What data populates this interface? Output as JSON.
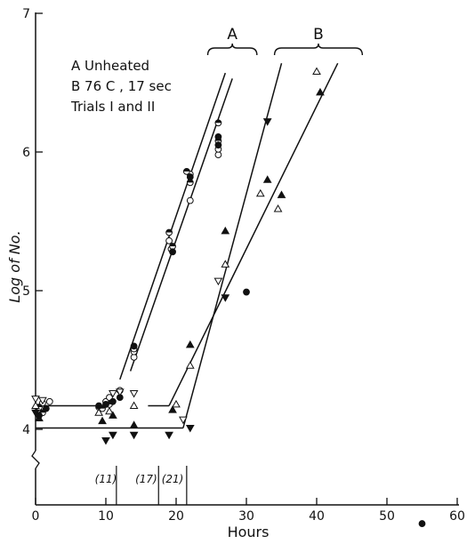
{
  "chart_data": {
    "type": "scatter",
    "xlabel": "Hours",
    "ylabel": "Log of No.",
    "xlim": [
      0,
      60
    ],
    "ylim": [
      3.75,
      7.0
    ],
    "y_axis_break": true,
    "x_ticks": [
      0,
      10,
      20,
      30,
      40,
      50,
      60
    ],
    "y_ticks": [
      4,
      5,
      6,
      7
    ],
    "grid": false,
    "legend": {
      "position": "top-left",
      "lines": [
        "A  Unheated",
        "B  76 C , 17 sec",
        "Trials I and II"
      ]
    },
    "brackets": [
      {
        "label": "A",
        "x_range": [
          24.5,
          31.5
        ]
      },
      {
        "label": "B",
        "x_range": [
          34,
          46.5
        ]
      }
    ],
    "interval_labels": [
      {
        "text": "(11)",
        "x_range": [
          8.5,
          11.5
        ]
      },
      {
        "text": "(17)",
        "x_range": [
          14,
          17.5
        ]
      },
      {
        "text": "(21)",
        "x_range": [
          17.5,
          21.5
        ]
      }
    ],
    "series": [
      {
        "marker": "open-circle",
        "points": [
          [
            0.5,
            4.13
          ],
          [
            1,
            4.19
          ],
          [
            2,
            4.2
          ],
          [
            9,
            4.16
          ],
          [
            10,
            4.2
          ],
          [
            10.5,
            4.23
          ],
          [
            12,
            4.28
          ],
          [
            14,
            4.52
          ],
          [
            14,
            4.56
          ],
          [
            19,
            5.36
          ],
          [
            19.3,
            5.3
          ],
          [
            22,
            5.65
          ],
          [
            22,
            5.84
          ],
          [
            26,
            5.98
          ],
          [
            26,
            6.02
          ]
        ]
      },
      {
        "marker": "half-filled-circle",
        "points": [
          [
            0.5,
            4.16
          ],
          [
            1,
            4.12
          ],
          [
            9.5,
            4.15
          ],
          [
            10.5,
            4.18
          ],
          [
            14,
            4.58
          ],
          [
            19,
            5.42
          ],
          [
            19.5,
            5.32
          ],
          [
            21.5,
            5.86
          ],
          [
            22,
            5.78
          ],
          [
            26,
            6.08
          ],
          [
            26,
            6.21
          ]
        ]
      },
      {
        "marker": "filled-circle",
        "points": [
          [
            0.5,
            4.1
          ],
          [
            1.5,
            4.15
          ],
          [
            9,
            4.17
          ],
          [
            10,
            4.18
          ],
          [
            11,
            4.2
          ],
          [
            12,
            4.23
          ],
          [
            14,
            4.6
          ],
          [
            19.5,
            5.28
          ],
          [
            22,
            5.82
          ],
          [
            26,
            6.05
          ],
          [
            26,
            6.11
          ],
          [
            30,
            4.99
          ],
          [
            55,
            3.32
          ]
        ]
      },
      {
        "marker": "open-triangle",
        "points": [
          [
            0,
            4.17
          ],
          [
            9,
            4.12
          ],
          [
            10.5,
            4.13
          ],
          [
            14,
            4.17
          ],
          [
            20,
            4.18
          ],
          [
            22,
            4.46
          ],
          [
            27,
            5.19
          ],
          [
            32,
            5.7
          ],
          [
            34.5,
            5.59
          ],
          [
            40,
            6.58
          ]
        ]
      },
      {
        "marker": "filled-triangle",
        "points": [
          [
            0.5,
            4.08
          ],
          [
            9.5,
            4.06
          ],
          [
            11,
            4.1
          ],
          [
            14,
            4.03
          ],
          [
            19.5,
            4.14
          ],
          [
            22,
            4.61
          ],
          [
            27,
            5.43
          ],
          [
            33,
            5.8
          ],
          [
            35,
            5.69
          ],
          [
            40.5,
            6.43
          ]
        ]
      },
      {
        "marker": "open-inverted-triangle",
        "points": [
          [
            0,
            4.22
          ],
          [
            1,
            4.21
          ],
          [
            11,
            4.26
          ],
          [
            12,
            4.27
          ],
          [
            14,
            4.26
          ],
          [
            21,
            4.07
          ],
          [
            26,
            5.07
          ]
        ]
      },
      {
        "marker": "filled-inverted-triangle",
        "points": [
          [
            0,
            4.12
          ],
          [
            10,
            3.92
          ],
          [
            11,
            3.96
          ],
          [
            14,
            3.96
          ],
          [
            19,
            3.96
          ],
          [
            22,
            4.01
          ],
          [
            27,
            4.95
          ],
          [
            33,
            6.22
          ]
        ]
      }
    ],
    "fit_lines": [
      {
        "points": [
          [
            0,
            4.17
          ],
          [
            10,
            4.17
          ]
        ]
      },
      {
        "points": [
          [
            12,
            4.36
          ],
          [
            27,
            6.57
          ]
        ]
      },
      {
        "points": [
          [
            13.5,
            4.42
          ],
          [
            28,
            6.53
          ]
        ]
      },
      {
        "points": [
          [
            0,
            4.01
          ],
          [
            21,
            4.01
          ]
        ]
      },
      {
        "points": [
          [
            21,
            4.01
          ],
          [
            35,
            6.64
          ]
        ]
      },
      {
        "points": [
          [
            16,
            4.17
          ],
          [
            19,
            4.17
          ]
        ]
      },
      {
        "points": [
          [
            19,
            4.17
          ],
          [
            43,
            6.64
          ]
        ]
      }
    ]
  }
}
